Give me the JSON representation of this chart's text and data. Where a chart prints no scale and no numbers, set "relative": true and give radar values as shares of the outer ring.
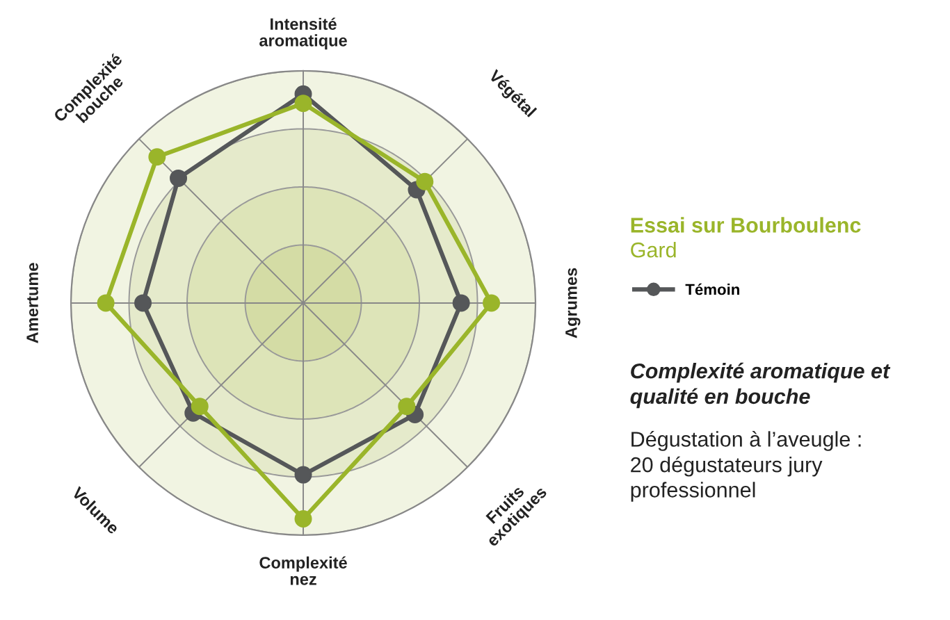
{
  "chart_data": {
    "type": "radar",
    "relative": true,
    "grid": true,
    "legend": "right",
    "marker": "circle",
    "line_style": "solid",
    "title": "Essai sur Bourboulenc",
    "subtitle": "Gard",
    "categories": [
      "Intensité\naromatique",
      "Végétal",
      "Agrumes",
      "Fruits\nexotiques",
      "Complexité\nnez",
      "Volume",
      "Amertume",
      "Complexité\nbouche"
    ],
    "series": [
      {
        "name": "Témoin",
        "color": "#555759",
        "values": [
          0.9,
          0.69,
          0.68,
          0.68,
          0.74,
          0.67,
          0.69,
          0.76
        ]
      },
      {
        "color": "#9ab52a",
        "values": [
          0.86,
          0.74,
          0.81,
          0.63,
          0.93,
          0.63,
          0.85,
          0.89
        ]
      }
    ],
    "annotations": [
      "Complexité aromatique et\nqualité en bouche",
      "Dégustation à l’aveugle :\n20 dégustateurs jury\nprofessionnel"
    ]
  }
}
